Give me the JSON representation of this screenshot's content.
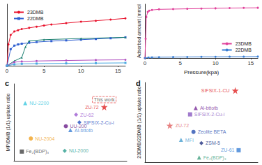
{
  "chart_data": [
    {
      "type": "line",
      "xlim": [
        0,
        16
      ],
      "xticks": [
        0,
        5,
        10,
        15
      ],
      "ylim": [
        0,
        2.6
      ],
      "tick_labels": "x",
      "legend": "upper left",
      "series": [
        {
          "name": "23DMB",
          "color": "#e8102a",
          "marker": "circle",
          "x": [
            0,
            0.2,
            0.5,
            1,
            1.5,
            2,
            3,
            4,
            5,
            6,
            8,
            10,
            12,
            14,
            16
          ],
          "values": [
            0,
            0.9,
            1.3,
            1.45,
            1.5,
            1.55,
            1.6,
            1.65,
            1.7,
            1.74,
            1.8,
            1.86,
            1.9,
            1.95,
            2.0
          ]
        },
        {
          "name": "22DMB",
          "color": "#2f5fd0",
          "marker": "square",
          "x": [
            0,
            0.5,
            1,
            1.5,
            2,
            3,
            4,
            6,
            8,
            10,
            12,
            14,
            16
          ],
          "values": [
            0,
            0.7,
            0.85,
            0.9,
            0.93,
            0.97,
            1.0,
            1.04,
            1.07,
            1.1,
            1.13,
            1.16,
            1.2
          ]
        },
        {
          "color": "#1a7f70",
          "marker": "triangle",
          "x": [
            0,
            1,
            2,
            2.5,
            3,
            5,
            10,
            16
          ],
          "values": [
            0,
            0.2,
            0.35,
            0.8,
            1.05,
            1.1,
            1.15,
            1.2
          ]
        },
        {
          "color": "#b050c0",
          "marker": "circle",
          "x": [
            0,
            1,
            2,
            4,
            8,
            12,
            16
          ],
          "values": [
            0,
            0.15,
            0.18,
            0.2,
            0.22,
            0.24,
            0.25
          ]
        },
        {
          "color": "#4aa8e0",
          "marker": "square",
          "x": [
            0,
            1,
            2,
            4,
            8,
            12,
            16
          ],
          "values": [
            0,
            0.06,
            0.08,
            0.09,
            0.1,
            0.11,
            0.12
          ]
        }
      ]
    },
    {
      "type": "line",
      "x_label": "Pressure(kpa)",
      "y_label": "Adsorbed amount (mmol",
      "xlim": [
        0,
        16
      ],
      "xticks": [
        0,
        5,
        10,
        15
      ],
      "ylim": [
        0,
        4.2
      ],
      "tick_labels": "x",
      "legend": "lower right",
      "series": [
        {
          "name": "23DMB",
          "color": "#e0409a",
          "marker": "circle",
          "x": [
            0,
            0.1,
            0.2,
            0.4,
            0.6,
            1,
            2,
            4,
            6,
            8,
            10,
            12,
            14,
            16
          ],
          "values": [
            0,
            1.5,
            3.2,
            3.6,
            3.7,
            3.75,
            3.8,
            3.82,
            3.84,
            3.86,
            3.88,
            3.9,
            3.91,
            3.92
          ]
        },
        {
          "name": "22DMB",
          "color": "#3a7fd5",
          "marker": "circle",
          "x": [
            0,
            0.5,
            1,
            2,
            4,
            6,
            8,
            10,
            12,
            14,
            16
          ],
          "values": [
            0,
            0.05,
            0.06,
            0.07,
            0.08,
            0.09,
            0.1,
            0.1,
            0.11,
            0.11,
            0.12
          ]
        }
      ]
    },
    {
      "type": "scatter",
      "title": "c",
      "y_label": "MP/DMB (1/1) uptake ratio",
      "xlim": [
        0,
        10
      ],
      "ylim": [
        0,
        10
      ],
      "tick_labels": false,
      "annotations": [
        {
          "text": "This work",
          "point": "ZU-72"
        }
      ],
      "series": [
        {
          "name": "NU-2200",
          "color": "#3cc8e0",
          "marker": "triangle",
          "x": [
            1.0
          ],
          "values": [
            7.5
          ]
        },
        {
          "name": "ZU-72",
          "color": "#e02020",
          "marker": "star",
          "x": [
            8.0
          ],
          "values": [
            7.0
          ]
        },
        {
          "name": "ZU-62",
          "color": "#9b59d0",
          "marker": "diamond",
          "x": [
            5.5
          ],
          "values": [
            6.0
          ]
        },
        {
          "name": "SIFSIX-2-Cu-i",
          "color": "#2050c0",
          "marker": "diamond",
          "x": [
            5.8
          ],
          "values": [
            5.0
          ]
        },
        {
          "name": "UU-200",
          "color": "#6a1f8a",
          "marker": "circle",
          "x": [
            4.6
          ],
          "values": [
            4.5
          ]
        },
        {
          "name": "Al-bttotb",
          "color": "#3a7fd5",
          "marker": "triangle",
          "x": [
            5.0
          ],
          "values": [
            4.0
          ]
        },
        {
          "name": "NU-2004",
          "color": "#f0a020",
          "marker": "circle",
          "x": [
            1.5
          ],
          "values": [
            2.9
          ]
        },
        {
          "name": "NU-2000",
          "color": "#2a9d8f",
          "marker": "diamond",
          "x": [
            4.5
          ],
          "values": [
            1.3
          ]
        },
        {
          "name": "Fe₂(BDP)₃",
          "color": "#444444",
          "marker": "square",
          "x": [
            0.7
          ],
          "values": [
            1.2
          ]
        }
      ]
    },
    {
      "type": "scatter",
      "title": "d",
      "y_label": "23DMB/22DMB (1/1) uptake ratio",
      "xlim": [
        0,
        10
      ],
      "ylim": [
        0,
        10
      ],
      "tick_labels": false,
      "series": [
        {
          "name": "SIFSIX-1-CU",
          "color": "#e02020",
          "marker": "star",
          "x": [
            8.0
          ],
          "values": [
            9.0
          ]
        },
        {
          "name": "Al-bttotb",
          "color": "#7b2f9a",
          "marker": "triangle",
          "x": [
            4.5
          ],
          "values": [
            6.8
          ]
        },
        {
          "name": "SIFSIX-2-Cu-i",
          "color": "#8a5ac0",
          "marker": "square",
          "x": [
            4.0
          ],
          "values": [
            6.0
          ]
        },
        {
          "name": "ZU-72",
          "color": "#e06060",
          "marker": "star",
          "x": [
            2.2
          ],
          "values": [
            4.6
          ]
        },
        {
          "name": "Zeolite BETA",
          "color": "#2850b0",
          "marker": "circle",
          "x": [
            4.3
          ],
          "values": [
            3.8
          ]
        },
        {
          "name": "MFI",
          "color": "#4aa0d0",
          "marker": "triangle",
          "x": [
            3.2
          ],
          "values": [
            2.8
          ]
        },
        {
          "name": "ZSM-5",
          "color": "#203080",
          "marker": "diamond",
          "x": [
            5.0
          ],
          "values": [
            2.4
          ]
        },
        {
          "name": "ZU-61",
          "color": "#3a7fd5",
          "marker": "square",
          "x": [
            8.3
          ],
          "values": [
            1.5
          ]
        },
        {
          "name": "Fe₂(BDP)₃",
          "color": "#40a080",
          "marker": "triangle",
          "x": [
            4.8
          ],
          "values": [
            0.6
          ]
        }
      ]
    }
  ]
}
